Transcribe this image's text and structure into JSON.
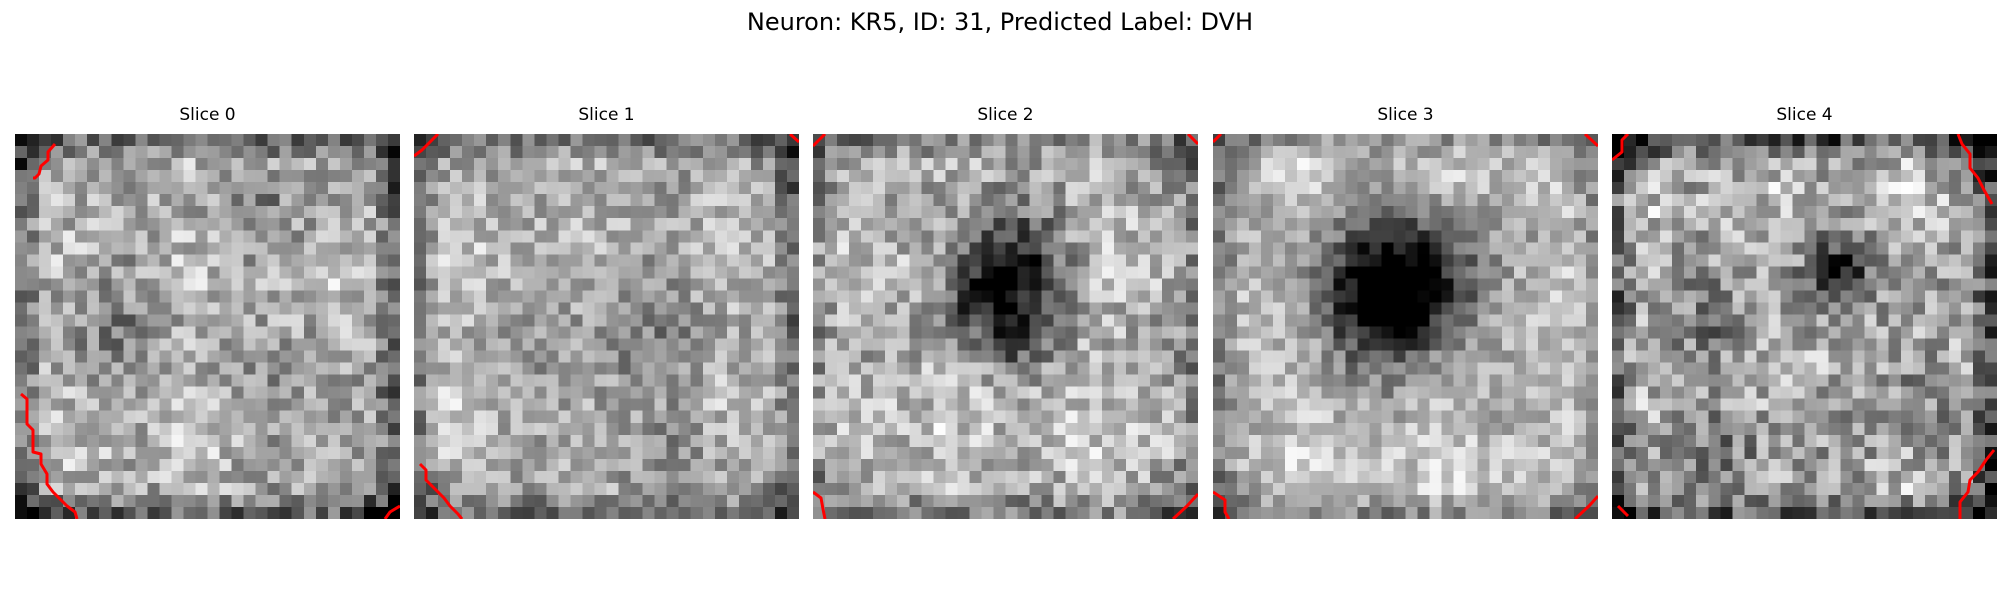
{
  "figure": {
    "title": "Neuron: KR5, ID: 31, Predicted Label: DVH"
  },
  "slices": [
    {
      "label": "Slice 0"
    },
    {
      "label": "Slice 1"
    },
    {
      "label": "Slice 2"
    },
    {
      "label": "Slice 3"
    },
    {
      "label": "Slice 4"
    }
  ],
  "colors": {
    "background": "#ffffff",
    "contour": "#ff0000",
    "colormap": "gray"
  }
}
